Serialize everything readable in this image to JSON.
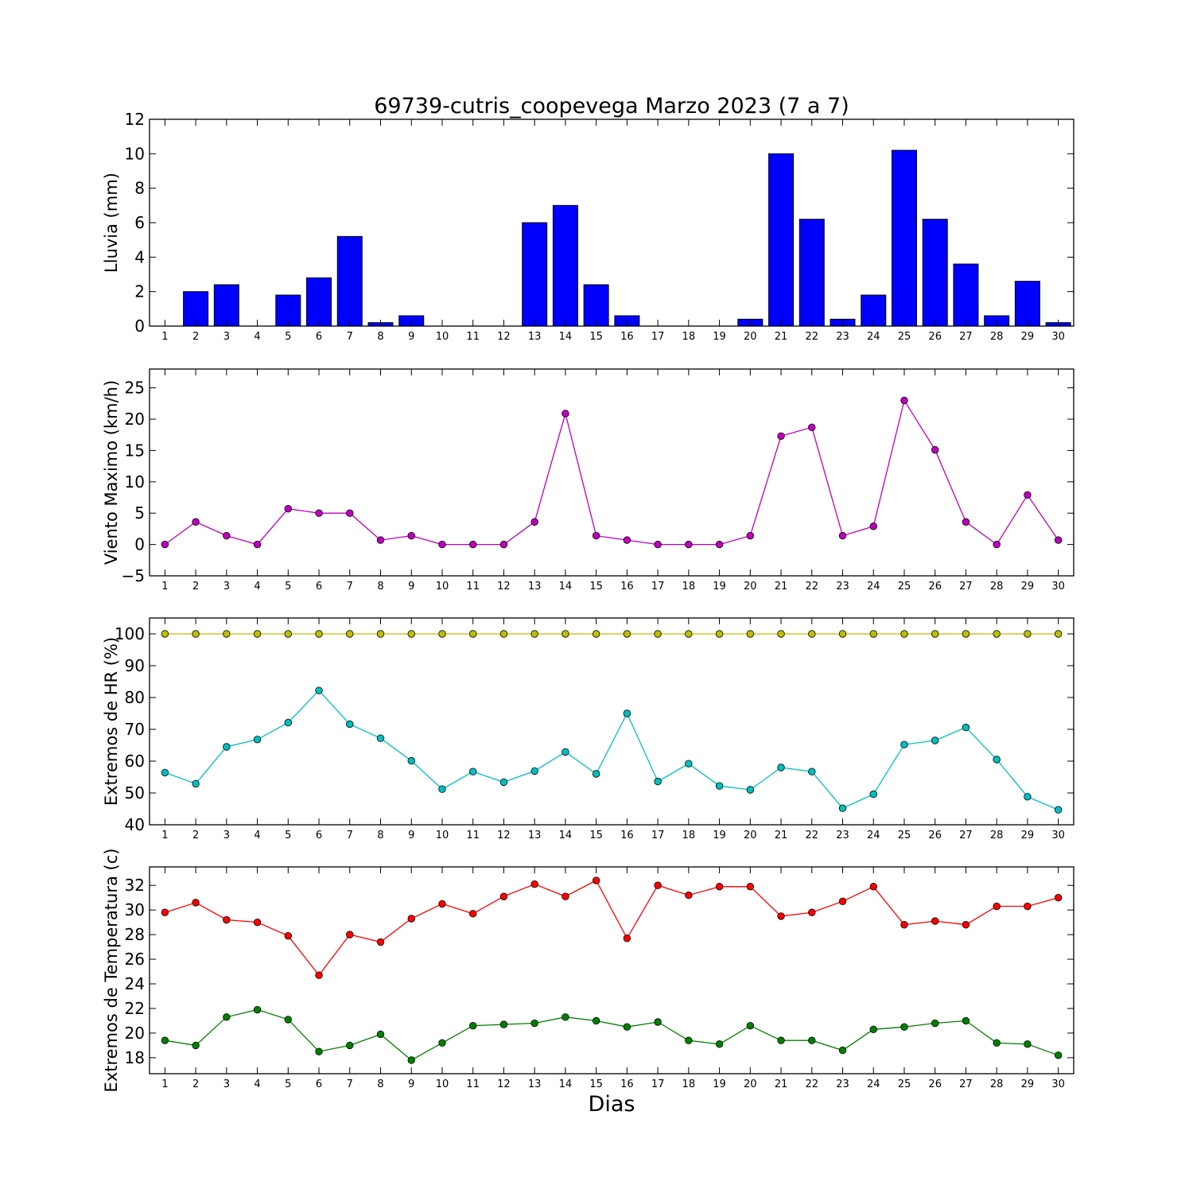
{
  "figure": {
    "title": "69739-cutris_coopevega Marzo 2023  (7 a 7)",
    "xlabel": "Dias"
  },
  "chart_data": [
    {
      "type": "bar",
      "ylabel": "Lluvia (mm)",
      "ylim": [
        0,
        12
      ],
      "yticks": [
        0,
        2,
        4,
        6,
        8,
        10,
        12
      ],
      "categories": [
        1,
        2,
        3,
        4,
        5,
        6,
        7,
        8,
        9,
        10,
        11,
        12,
        13,
        14,
        15,
        16,
        17,
        18,
        19,
        20,
        21,
        22,
        23,
        24,
        25,
        26,
        27,
        28,
        29,
        30
      ],
      "series": [
        {
          "color": "#0000ff",
          "values": [
            0,
            2.0,
            2.4,
            0,
            1.8,
            2.8,
            5.2,
            0.2,
            0.6,
            0,
            0,
            0,
            6.0,
            7.0,
            2.4,
            0.6,
            0,
            0,
            0,
            0.4,
            10.0,
            6.2,
            0.4,
            1.8,
            10.2,
            6.2,
            3.6,
            0.6,
            2.6,
            0.2
          ]
        }
      ]
    },
    {
      "type": "line",
      "ylabel": "Viento Maximo (km/h)",
      "ylim": [
        -5,
        28
      ],
      "yticks": [
        -5,
        0,
        5,
        10,
        15,
        20,
        25
      ],
      "ytick_labels": [
        "−5",
        "0",
        "5",
        "10",
        "15",
        "20",
        "25"
      ],
      "categories": [
        1,
        2,
        3,
        4,
        5,
        6,
        7,
        8,
        9,
        10,
        11,
        12,
        13,
        14,
        15,
        16,
        17,
        18,
        19,
        20,
        21,
        22,
        23,
        24,
        25,
        26,
        27,
        28,
        29,
        30
      ],
      "series": [
        {
          "color": "#bf00bf",
          "values": [
            0,
            3.6,
            1.4,
            0,
            5.7,
            5.0,
            5.0,
            0.7,
            1.4,
            0,
            0,
            0,
            3.6,
            20.9,
            1.4,
            0.7,
            0,
            0,
            0,
            1.4,
            17.3,
            18.7,
            1.4,
            2.9,
            23.0,
            15.1,
            3.6,
            0,
            7.9,
            0.7
          ]
        }
      ]
    },
    {
      "type": "line",
      "ylabel": "Extremos de HR (%)",
      "ylim": [
        40,
        105
      ],
      "yticks": [
        40,
        50,
        60,
        70,
        80,
        90,
        100
      ],
      "categories": [
        1,
        2,
        3,
        4,
        5,
        6,
        7,
        8,
        9,
        10,
        11,
        12,
        13,
        14,
        15,
        16,
        17,
        18,
        19,
        20,
        21,
        22,
        23,
        24,
        25,
        26,
        27,
        28,
        29,
        30
      ],
      "series": [
        {
          "color": "#bfbf00",
          "values": [
            100,
            100,
            100,
            100,
            100,
            100,
            100,
            100,
            100,
            100,
            100,
            100,
            100,
            100,
            100,
            100,
            100,
            100,
            100,
            100,
            100,
            100,
            100,
            100,
            100,
            100,
            100,
            100,
            100,
            100
          ]
        },
        {
          "color": "#00bfbf",
          "values": [
            56.4,
            52.9,
            64.5,
            66.8,
            72.1,
            82.2,
            71.6,
            67.2,
            60.1,
            51.2,
            56.7,
            53.4,
            56.9,
            62.9,
            56.0,
            75.0,
            53.6,
            59.2,
            52.2,
            51.0,
            58.0,
            56.7,
            45.2,
            49.6,
            65.2,
            66.5,
            70.6,
            60.5,
            48.8,
            44.7
          ]
        }
      ]
    },
    {
      "type": "line",
      "ylabel": "Extremos de Temperatura (c)",
      "ylim": [
        16.7,
        33.5
      ],
      "yticks": [
        18,
        20,
        22,
        24,
        26,
        28,
        30,
        32
      ],
      "categories": [
        1,
        2,
        3,
        4,
        5,
        6,
        7,
        8,
        9,
        10,
        11,
        12,
        13,
        14,
        15,
        16,
        17,
        18,
        19,
        20,
        21,
        22,
        23,
        24,
        25,
        26,
        27,
        28,
        29,
        30
      ],
      "series": [
        {
          "color": "#ff0000",
          "values": [
            29.8,
            30.6,
            29.2,
            29.0,
            27.9,
            24.7,
            28.0,
            27.4,
            29.3,
            30.5,
            29.7,
            31.1,
            32.1,
            31.1,
            32.4,
            27.7,
            32.0,
            31.2,
            31.9,
            31.9,
            29.5,
            29.8,
            30.7,
            31.9,
            28.8,
            29.1,
            28.8,
            30.3,
            30.3,
            31.0
          ]
        },
        {
          "color": "#008000",
          "values": [
            19.4,
            19.0,
            21.3,
            21.9,
            21.1,
            18.5,
            19.0,
            19.9,
            17.8,
            19.2,
            20.6,
            20.7,
            20.8,
            21.3,
            21.0,
            20.5,
            20.9,
            19.4,
            19.1,
            20.6,
            19.4,
            19.4,
            18.6,
            20.3,
            20.5,
            20.8,
            21.0,
            19.2,
            19.1,
            18.2
          ]
        }
      ]
    }
  ]
}
